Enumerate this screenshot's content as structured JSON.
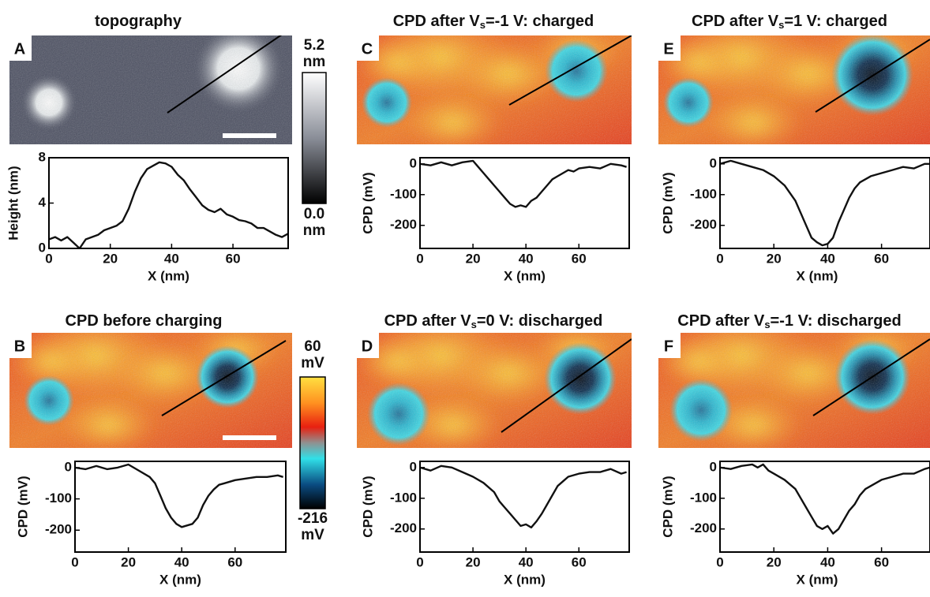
{
  "chart_data": [
    {
      "type": "line",
      "panel_label": "A",
      "title": [
        "topography"
      ],
      "x_label": "X (nm)",
      "y_label": "Height (nm)",
      "xlim": [
        0,
        78
      ],
      "ylim": [
        0,
        8
      ],
      "xticks": [
        0,
        20,
        40,
        60
      ],
      "yticks": [
        0,
        4,
        8
      ],
      "color": "#111111",
      "x": [
        0,
        2,
        4,
        6,
        8,
        10,
        12,
        14,
        16,
        18,
        20,
        22,
        24,
        26,
        28,
        30,
        32,
        34,
        36,
        38,
        40,
        42,
        44,
        46,
        48,
        50,
        52,
        54,
        56,
        58,
        60,
        62,
        64,
        66,
        68,
        70,
        72,
        74,
        76,
        78
      ],
      "values": [
        0.8,
        1,
        0.7,
        1,
        0.5,
        0,
        0.8,
        1,
        1.2,
        1.6,
        1.8,
        2,
        2.4,
        3.5,
        5,
        6.2,
        7,
        7.3,
        7.6,
        7.5,
        7.2,
        6.5,
        6,
        5.2,
        4.5,
        3.8,
        3.4,
        3.2,
        3.5,
        3,
        2.8,
        2.5,
        2.4,
        2.2,
        1.8,
        1.8,
        1.5,
        1.2,
        1,
        1.3
      ],
      "colorbar": {
        "max": {
          "value": 5.2,
          "label": "5.2"
        },
        "min": {
          "value": 0,
          "label": "0.0"
        },
        "unit": "nm"
      }
    },
    {
      "type": "line",
      "panel_label": "B",
      "title": [
        "CPD before charging"
      ],
      "x_label": "X (nm)",
      "y_label": "CPD (mV)",
      "xlim": [
        0,
        79
      ],
      "ylim": [
        -270,
        20
      ],
      "xticks": [
        0,
        20,
        40,
        60
      ],
      "yticks": [
        0,
        -100,
        -200
      ],
      "color": "#111111",
      "x": [
        0,
        4,
        8,
        12,
        16,
        20,
        24,
        28,
        30,
        32,
        34,
        36,
        38,
        40,
        42,
        44,
        46,
        48,
        50,
        52,
        54,
        56,
        58,
        60,
        64,
        68,
        72,
        76,
        78
      ],
      "values": [
        0,
        -5,
        5,
        -5,
        0,
        10,
        -10,
        -30,
        -50,
        -90,
        -130,
        -160,
        -180,
        -190,
        -185,
        -180,
        -160,
        -120,
        -90,
        -70,
        -55,
        -50,
        -45,
        -40,
        -35,
        -30,
        -30,
        -25,
        -30
      ],
      "colorbar": {
        "max": {
          "value": 60,
          "label": "60"
        },
        "min": {
          "value": -216,
          "label": "-216"
        },
        "unit": "mV"
      }
    },
    {
      "type": "line",
      "panel_label": "C",
      "title": [
        "CPD after V",
        "s",
        "=-1 V: charged"
      ],
      "x_label": "X (nm)",
      "y_label": "CPD (mV)",
      "xlim": [
        0,
        79
      ],
      "ylim": [
        -275,
        20
      ],
      "xticks": [
        0,
        20,
        40,
        60
      ],
      "yticks": [
        0,
        -100,
        -200
      ],
      "color": "#111111",
      "x": [
        0,
        4,
        8,
        12,
        16,
        20,
        22,
        24,
        26,
        28,
        30,
        32,
        34,
        36,
        38,
        40,
        42,
        44,
        46,
        48,
        50,
        52,
        54,
        56,
        58,
        60,
        64,
        68,
        72,
        76,
        78
      ],
      "values": [
        0,
        -5,
        5,
        -5,
        5,
        10,
        -10,
        -30,
        -50,
        -70,
        -90,
        -110,
        -130,
        -140,
        -135,
        -140,
        -120,
        -110,
        -90,
        -70,
        -50,
        -40,
        -30,
        -20,
        -25,
        -15,
        -10,
        -15,
        0,
        -5,
        -10
      ]
    },
    {
      "type": "line",
      "panel_label": "D",
      "title": [
        "CPD after V",
        "s",
        "=0 V: discharged"
      ],
      "x_label": "X (nm)",
      "y_label": "CPD (mV)",
      "xlim": [
        0,
        79
      ],
      "ylim": [
        -275,
        20
      ],
      "xticks": [
        0,
        20,
        40,
        60
      ],
      "yticks": [
        0,
        -100,
        -200
      ],
      "color": "#111111",
      "x": [
        0,
        4,
        8,
        12,
        16,
        20,
        24,
        28,
        30,
        32,
        34,
        36,
        38,
        40,
        42,
        44,
        46,
        48,
        50,
        52,
        54,
        56,
        60,
        64,
        68,
        72,
        76,
        78
      ],
      "values": [
        0,
        -10,
        5,
        0,
        -15,
        -30,
        -50,
        -80,
        -110,
        -130,
        -150,
        -170,
        -190,
        -185,
        -195,
        -175,
        -150,
        -120,
        -90,
        -60,
        -45,
        -30,
        -20,
        -15,
        -15,
        -5,
        -20,
        -15
      ]
    },
    {
      "type": "line",
      "panel_label": "E",
      "title": [
        "CPD after V",
        "s",
        "=1 V: charged"
      ],
      "x_label": "X (nm)",
      "y_label": "CPD (mV)",
      "xlim": [
        0,
        78
      ],
      "ylim": [
        -275,
        20
      ],
      "xticks": [
        0,
        20,
        40,
        60
      ],
      "yticks": [
        0,
        -100,
        -200
      ],
      "color": "#111111",
      "x": [
        0,
        4,
        8,
        12,
        16,
        20,
        24,
        28,
        30,
        32,
        34,
        36,
        38,
        40,
        42,
        44,
        46,
        48,
        50,
        52,
        56,
        60,
        64,
        68,
        72,
        76,
        78
      ],
      "values": [
        0,
        10,
        0,
        -10,
        -20,
        -40,
        -70,
        -120,
        -160,
        -200,
        -240,
        -255,
        -265,
        -260,
        -240,
        -190,
        -150,
        -110,
        -80,
        -60,
        -40,
        -30,
        -20,
        -10,
        -15,
        0,
        0
      ]
    },
    {
      "type": "line",
      "panel_label": "F",
      "title": [
        "CPD after V",
        "s",
        "=-1 V: discharged"
      ],
      "x_label": "X (nm)",
      "y_label": "CPD (mV)",
      "xlim": [
        0,
        78
      ],
      "ylim": [
        -275,
        20
      ],
      "xticks": [
        0,
        20,
        40,
        60
      ],
      "yticks": [
        0,
        -100,
        -200
      ],
      "color": "#111111",
      "x": [
        0,
        4,
        8,
        12,
        14,
        16,
        18,
        20,
        24,
        28,
        30,
        32,
        34,
        36,
        38,
        40,
        42,
        44,
        46,
        48,
        50,
        52,
        54,
        56,
        58,
        60,
        64,
        68,
        72,
        76,
        78
      ],
      "values": [
        0,
        -5,
        5,
        10,
        0,
        10,
        -10,
        -20,
        -40,
        -70,
        -100,
        -130,
        -160,
        -190,
        -200,
        -190,
        -215,
        -200,
        -170,
        -140,
        -120,
        -90,
        -70,
        -60,
        -50,
        -40,
        -30,
        -20,
        -20,
        -5,
        0
      ]
    }
  ]
}
